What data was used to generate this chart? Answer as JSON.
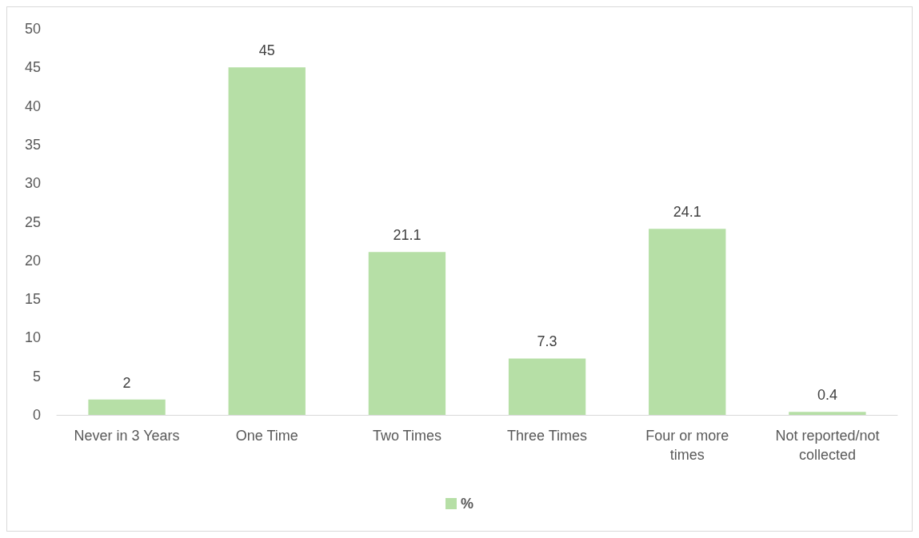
{
  "chart_data": {
    "type": "bar",
    "categories": [
      "Never in 3 Years",
      "One Time",
      "Two Times",
      "Three Times",
      "Four or more times",
      "Not reported/not collected"
    ],
    "series": [
      {
        "name": "%",
        "color": "#b6dfa6",
        "values": [
          2,
          45,
          21.1,
          7.3,
          24.1,
          0.4
        ]
      }
    ],
    "ylim": [
      0,
      50
    ],
    "yticks": [
      0,
      5,
      10,
      15,
      20,
      25,
      30,
      35,
      40,
      45,
      50
    ],
    "grid": false,
    "legend": "bottom",
    "data_labels": true
  }
}
